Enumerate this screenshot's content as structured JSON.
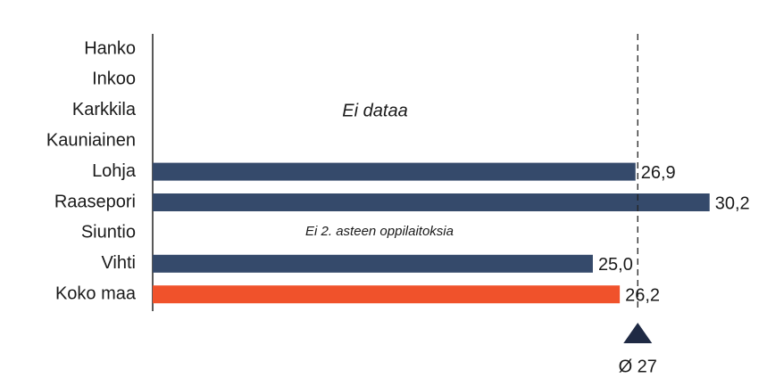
{
  "chart_data": {
    "type": "bar",
    "orientation": "horizontal",
    "categories": [
      "Hanko",
      "Inkoo",
      "Karkkila",
      "Kauniainen",
      "Lohja",
      "Raasepori",
      "Siuntio",
      "Vihti",
      "Koko maa"
    ],
    "values": [
      null,
      null,
      null,
      null,
      26.9,
      30.2,
      null,
      25.0,
      26.2
    ],
    "value_labels": [
      null,
      null,
      null,
      null,
      "26,9",
      "30,2",
      null,
      "25,0",
      "26,2"
    ],
    "colors": [
      "#354a6b",
      "#354a6b",
      "#354a6b",
      "#354a6b",
      "#354a6b",
      "#354a6b",
      "#354a6b",
      "#354a6b",
      "#f0522b"
    ],
    "xlim": [
      5.4,
      32
    ],
    "reference_line": {
      "value": 27,
      "label": "Ø 27"
    },
    "annotations": [
      {
        "text": "Ei dataa"
      },
      {
        "text": "Ei 2. asteen oppilaitoksia"
      }
    ]
  }
}
